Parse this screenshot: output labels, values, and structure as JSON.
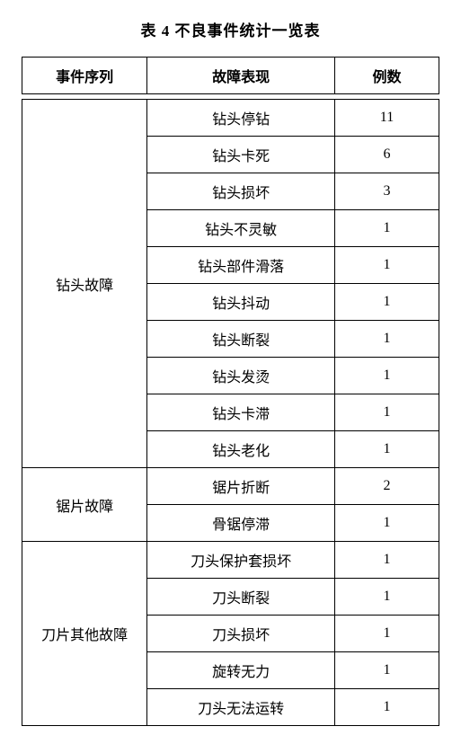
{
  "title": "表 4 不良事件统计一览表",
  "columns": [
    "事件序列",
    "故障表现",
    "例数"
  ],
  "groups": [
    {
      "category": "钻头故障",
      "rows": [
        {
          "fault": "钻头停钻",
          "count": "11"
        },
        {
          "fault": "钻头卡死",
          "count": "6"
        },
        {
          "fault": "钻头损坏",
          "count": "3"
        },
        {
          "fault": "钻头不灵敏",
          "count": "1"
        },
        {
          "fault": "钻头部件滑落",
          "count": "1"
        },
        {
          "fault": "钻头抖动",
          "count": "1"
        },
        {
          "fault": "钻头断裂",
          "count": "1"
        },
        {
          "fault": "钻头发烫",
          "count": "1"
        },
        {
          "fault": "钻头卡滞",
          "count": "1"
        },
        {
          "fault": "钻头老化",
          "count": "1"
        }
      ]
    },
    {
      "category": "锯片故障",
      "rows": [
        {
          "fault": "锯片折断",
          "count": "2"
        },
        {
          "fault": "骨锯停滞",
          "count": "1"
        }
      ]
    },
    {
      "category": "刀片其他故障",
      "rows": [
        {
          "fault": "刀头保护套损坏",
          "count": "1"
        },
        {
          "fault": "刀头断裂",
          "count": "1"
        },
        {
          "fault": "刀头损坏",
          "count": "1"
        },
        {
          "fault": "旋转无力",
          "count": "1"
        },
        {
          "fault": "刀头无法运转",
          "count": "1"
        }
      ]
    }
  ],
  "colors": {
    "text": "#000000",
    "border": "#000000",
    "background": "#ffffff"
  },
  "font": {
    "family": "SimSun",
    "title_size": 17,
    "cell_size": 16
  }
}
